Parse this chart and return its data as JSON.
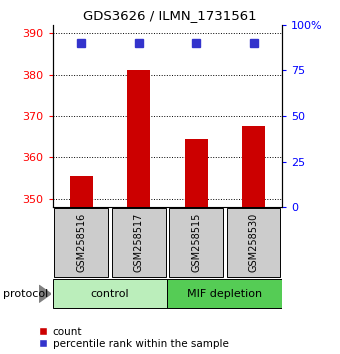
{
  "title": "GDS3626 / ILMN_1731561",
  "samples": [
    "GSM258516",
    "GSM258517",
    "GSM258515",
    "GSM258530"
  ],
  "bar_values": [
    355.5,
    381.0,
    364.5,
    367.5
  ],
  "percentile_values": [
    90,
    90,
    90,
    90
  ],
  "ylim_left": [
    348,
    392
  ],
  "ylim_right": [
    0,
    100
  ],
  "yticks_left": [
    350,
    360,
    370,
    380,
    390
  ],
  "yticks_right": [
    0,
    25,
    50,
    75,
    100
  ],
  "ytick_labels_right": [
    "0",
    "25",
    "50",
    "75",
    "100%"
  ],
  "bar_color": "#cc0000",
  "percentile_color": "#3333cc",
  "bar_bottom": 348,
  "control_label": "control",
  "mif_label": "MIF depletion",
  "control_color": "#bbeebb",
  "mif_color": "#55cc55",
  "sample_box_color": "#cccccc",
  "legend_count_label": "count",
  "legend_pct_label": "percentile rank within the sample",
  "protocol_label": "protocol"
}
